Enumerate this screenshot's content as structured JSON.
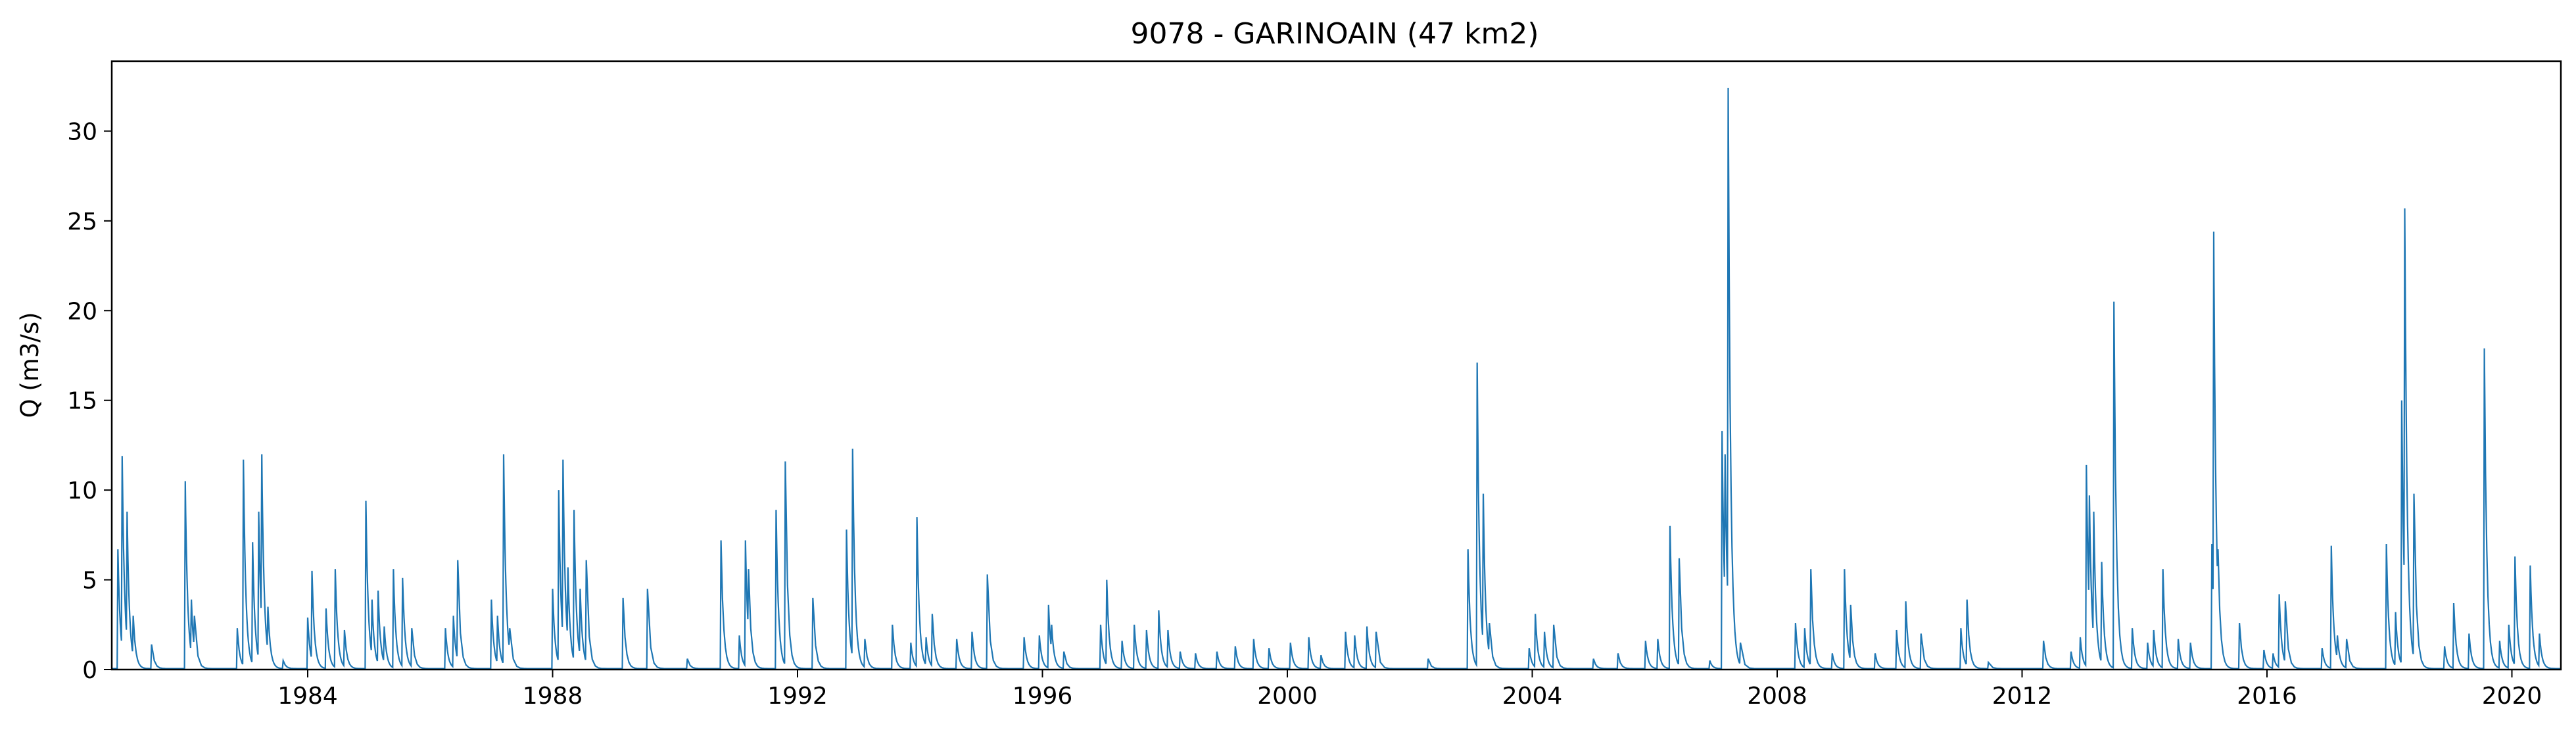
{
  "chart_data": {
    "type": "line",
    "title": "9078 - GARINOAIN (47 km2)",
    "xlabel": "",
    "ylabel": "Q (m3/s)",
    "xlim": [
      1980.8,
      2020.8
    ],
    "ylim": [
      0,
      33.9
    ],
    "xticks": [
      1984,
      1988,
      1992,
      1996,
      2000,
      2004,
      2008,
      2012,
      2016,
      2020
    ],
    "yticks": [
      0,
      5,
      10,
      15,
      20,
      25,
      30
    ],
    "grid": false,
    "legend": "none",
    "color": "#1f77b4",
    "baseflow": 0.05,
    "peaks": [
      [
        1980.9,
        6.7
      ],
      [
        1980.97,
        11.9
      ],
      [
        1981.05,
        8.8
      ],
      [
        1981.15,
        3.0
      ],
      [
        1981.45,
        1.4
      ],
      [
        1982.0,
        10.5
      ],
      [
        1982.1,
        3.9
      ],
      [
        1982.15,
        3.0
      ],
      [
        1982.85,
        2.3
      ],
      [
        1982.95,
        11.7
      ],
      [
        1983.1,
        7.1
      ],
      [
        1983.2,
        8.8
      ],
      [
        1983.25,
        12.0
      ],
      [
        1983.35,
        3.5
      ],
      [
        1983.6,
        0.5
      ],
      [
        1984.0,
        2.9
      ],
      [
        1984.07,
        5.5
      ],
      [
        1984.3,
        3.4
      ],
      [
        1984.45,
        5.6
      ],
      [
        1984.6,
        2.2
      ],
      [
        1984.95,
        9.4
      ],
      [
        1985.05,
        3.9
      ],
      [
        1985.15,
        4.4
      ],
      [
        1985.25,
        2.4
      ],
      [
        1985.4,
        5.6
      ],
      [
        1985.55,
        5.1
      ],
      [
        1985.7,
        2.3
      ],
      [
        1986.25,
        2.3
      ],
      [
        1986.38,
        3.0
      ],
      [
        1986.45,
        6.1
      ],
      [
        1987.0,
        3.9
      ],
      [
        1987.1,
        3.0
      ],
      [
        1987.2,
        12.0
      ],
      [
        1987.3,
        2.3
      ],
      [
        1988.0,
        4.5
      ],
      [
        1988.1,
        10.0
      ],
      [
        1988.17,
        11.7
      ],
      [
        1988.25,
        5.7
      ],
      [
        1988.35,
        8.9
      ],
      [
        1988.45,
        4.5
      ],
      [
        1988.55,
        6.1
      ],
      [
        1989.15,
        4.0
      ],
      [
        1989.55,
        4.5
      ],
      [
        1990.2,
        0.6
      ],
      [
        1990.75,
        7.2
      ],
      [
        1991.05,
        1.9
      ],
      [
        1991.15,
        7.2
      ],
      [
        1991.2,
        5.6
      ],
      [
        1991.65,
        8.9
      ],
      [
        1991.8,
        11.6
      ],
      [
        1992.25,
        4.0
      ],
      [
        1992.8,
        7.8
      ],
      [
        1992.9,
        12.3
      ],
      [
        1993.1,
        1.7
      ],
      [
        1993.55,
        2.5
      ],
      [
        1993.85,
        1.5
      ],
      [
        1993.95,
        8.5
      ],
      [
        1994.1,
        1.8
      ],
      [
        1994.2,
        3.1
      ],
      [
        1994.6,
        1.7
      ],
      [
        1994.85,
        2.1
      ],
      [
        1995.1,
        5.3
      ],
      [
        1995.7,
        1.8
      ],
      [
        1995.95,
        1.9
      ],
      [
        1996.1,
        3.6
      ],
      [
        1996.15,
        2.5
      ],
      [
        1996.35,
        1.0
      ],
      [
        1996.95,
        2.5
      ],
      [
        1997.05,
        5.0
      ],
      [
        1997.3,
        1.6
      ],
      [
        1997.5,
        2.5
      ],
      [
        1997.7,
        2.2
      ],
      [
        1997.9,
        3.3
      ],
      [
        1998.05,
        2.2
      ],
      [
        1998.25,
        1.0
      ],
      [
        1998.5,
        0.9
      ],
      [
        1998.85,
        1.0
      ],
      [
        1999.15,
        1.3
      ],
      [
        1999.45,
        1.7
      ],
      [
        1999.7,
        1.2
      ],
      [
        2000.05,
        1.5
      ],
      [
        2000.35,
        1.8
      ],
      [
        2000.55,
        0.8
      ],
      [
        2000.95,
        2.1
      ],
      [
        2001.1,
        1.9
      ],
      [
        2001.3,
        2.4
      ],
      [
        2001.45,
        2.1
      ],
      [
        2002.3,
        0.6
      ],
      [
        2002.95,
        6.7
      ],
      [
        2003.1,
        17.1
      ],
      [
        2003.2,
        9.8
      ],
      [
        2003.3,
        2.6
      ],
      [
        2003.95,
        1.2
      ],
      [
        2004.05,
        3.1
      ],
      [
        2004.2,
        2.1
      ],
      [
        2004.35,
        2.5
      ],
      [
        2005.0,
        0.6
      ],
      [
        2005.4,
        0.9
      ],
      [
        2005.85,
        1.6
      ],
      [
        2006.05,
        1.7
      ],
      [
        2006.25,
        8.0
      ],
      [
        2006.4,
        6.2
      ],
      [
        2006.9,
        0.5
      ],
      [
        2007.1,
        13.3
      ],
      [
        2007.15,
        12.0
      ],
      [
        2007.2,
        32.4
      ],
      [
        2007.4,
        1.5
      ],
      [
        2008.3,
        2.6
      ],
      [
        2008.45,
        2.3
      ],
      [
        2008.55,
        5.6
      ],
      [
        2008.9,
        0.9
      ],
      [
        2009.1,
        5.6
      ],
      [
        2009.2,
        3.6
      ],
      [
        2009.6,
        0.9
      ],
      [
        2009.95,
        2.2
      ],
      [
        2010.1,
        3.8
      ],
      [
        2010.35,
        2.0
      ],
      [
        2011.0,
        2.3
      ],
      [
        2011.1,
        3.9
      ],
      [
        2011.45,
        0.4
      ],
      [
        2012.35,
        1.6
      ],
      [
        2012.8,
        1.0
      ],
      [
        2012.95,
        1.8
      ],
      [
        2013.05,
        11.4
      ],
      [
        2013.1,
        9.7
      ],
      [
        2013.17,
        8.8
      ],
      [
        2013.3,
        6.0
      ],
      [
        2013.5,
        20.5
      ],
      [
        2013.8,
        2.3
      ],
      [
        2014.05,
        1.5
      ],
      [
        2014.15,
        2.2
      ],
      [
        2014.3,
        5.6
      ],
      [
        2014.55,
        1.7
      ],
      [
        2014.75,
        1.5
      ],
      [
        2015.1,
        7.0
      ],
      [
        2015.13,
        24.4
      ],
      [
        2015.2,
        6.7
      ],
      [
        2015.55,
        2.6
      ],
      [
        2015.95,
        1.1
      ],
      [
        2016.1,
        0.9
      ],
      [
        2016.2,
        4.2
      ],
      [
        2016.3,
        3.8
      ],
      [
        2016.9,
        1.2
      ],
      [
        2017.05,
        6.9
      ],
      [
        2017.15,
        1.9
      ],
      [
        2017.3,
        1.7
      ],
      [
        2017.95,
        7.0
      ],
      [
        2018.1,
        3.2
      ],
      [
        2018.2,
        15.0
      ],
      [
        2018.25,
        25.7
      ],
      [
        2018.4,
        9.8
      ],
      [
        2018.9,
        1.3
      ],
      [
        2019.05,
        3.7
      ],
      [
        2019.3,
        2.0
      ],
      [
        2019.55,
        17.9
      ],
      [
        2019.8,
        1.6
      ],
      [
        2019.95,
        2.5
      ],
      [
        2020.05,
        6.3
      ],
      [
        2020.3,
        5.8
      ],
      [
        2020.45,
        2.0
      ]
    ]
  }
}
